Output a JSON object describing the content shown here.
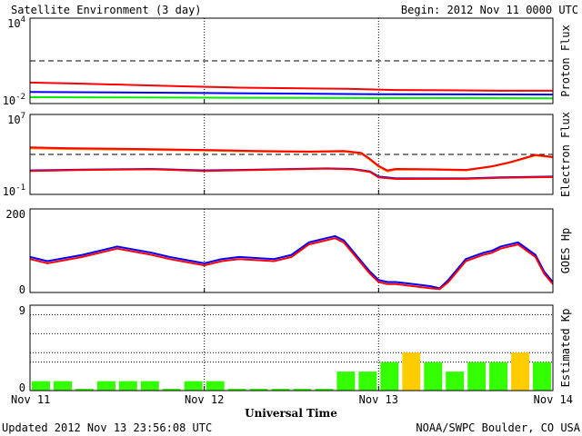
{
  "header": {
    "title": "Satellite Environment (3 day)",
    "begin": "Begin:  2012 Nov 11 0000 UTC"
  },
  "footer": {
    "updated": "Updated 2012 Nov 13 23:56:08 UTC",
    "credit": "NOAA/SWPC Boulder, CO USA"
  },
  "chart_data": [
    {
      "type": "line",
      "ylabel": "Proton Flux",
      "yscale": "log",
      "ylim": [
        0.01,
        10000
      ],
      "yticks": [
        {
          "b": "10",
          "e": "4"
        },
        {
          "b": "10",
          "e": "-2"
        }
      ],
      "threshold": 10,
      "series": [
        {
          "color": "#ff0000",
          "x": [
            0,
            0.3,
            0.6,
            0.9,
            1.2,
            1.5,
            1.8,
            2.1,
            2.4,
            2.7,
            3.0
          ],
          "y": [
            0.3,
            0.25,
            0.2,
            0.16,
            0.13,
            0.12,
            0.11,
            0.09,
            0.085,
            0.08,
            0.08
          ]
        },
        {
          "color": "#0000ff",
          "x": [
            0,
            0.5,
            1.0,
            1.5,
            2.0,
            2.5,
            3.0
          ],
          "y": [
            0.065,
            0.06,
            0.055,
            0.05,
            0.045,
            0.044,
            0.043
          ]
        },
        {
          "color": "#00ee00",
          "x": [
            0,
            0.5,
            1.0,
            1.5,
            2.0,
            2.5,
            3.0
          ],
          "y": [
            0.028,
            0.027,
            0.026,
            0.025,
            0.024,
            0.024,
            0.023
          ]
        }
      ]
    },
    {
      "type": "line",
      "ylabel": "Electron Flux",
      "yscale": "log",
      "ylim": [
        0.1,
        10000000
      ],
      "yticks": [
        {
          "b": "10",
          "e": "7"
        },
        {
          "b": "10",
          "e": "-1"
        }
      ],
      "threshold": 1000,
      "series": [
        {
          "color": "#ff8c00",
          "x": [
            0,
            0.2,
            0.6,
            1.0,
            1.3,
            1.6,
            1.8,
            1.9,
            1.95,
            2.0,
            2.05,
            2.1,
            2.3,
            2.5,
            2.65,
            2.75,
            2.9,
            3.0
          ],
          "y": [
            4000,
            3500,
            3000,
            2400,
            2000,
            1800,
            2000,
            1200,
            300,
            60,
            20,
            30,
            30,
            25,
            60,
            150,
            800,
            500
          ]
        },
        {
          "color": "#ff0000",
          "x": [
            0,
            0.2,
            0.6,
            1.0,
            1.3,
            1.6,
            1.8,
            1.9,
            1.95,
            2.0,
            2.05,
            2.1,
            2.3,
            2.5,
            2.65,
            2.75,
            2.9,
            3.0
          ],
          "y": [
            5000,
            4200,
            3500,
            2800,
            2200,
            1900,
            2200,
            1400,
            350,
            70,
            25,
            35,
            32,
            28,
            65,
            160,
            900,
            550
          ]
        },
        {
          "color": "#0000ff",
          "x": [
            0,
            0.3,
            0.7,
            1.0,
            1.3,
            1.7,
            1.85,
            1.95,
            2.0,
            2.1,
            2.5,
            2.7,
            3.0
          ],
          "y": [
            25,
            30,
            35,
            25,
            30,
            40,
            35,
            20,
            6,
            4,
            4,
            5,
            6
          ]
        },
        {
          "color": "#ff0000",
          "x": [
            0,
            0.3,
            0.7,
            1.0,
            1.3,
            1.7,
            1.85,
            1.95,
            2.0,
            2.1,
            2.5,
            2.7,
            3.0
          ],
          "y": [
            22,
            28,
            32,
            22,
            28,
            38,
            32,
            18,
            5,
            3.5,
            3.6,
            4.5,
            5.5
          ]
        }
      ]
    },
    {
      "type": "line",
      "ylabel": "GOES Hp",
      "yscale": "linear",
      "ylim": [
        0,
        200
      ],
      "yticks": [
        {
          "b": "200",
          "e": ""
        },
        {
          "b": "0",
          "e": ""
        }
      ],
      "series": [
        {
          "color": "#0000ff",
          "x": [
            0,
            0.1,
            0.3,
            0.5,
            0.7,
            0.8,
            1.0,
            1.1,
            1.2,
            1.4,
            1.5,
            1.6,
            1.7,
            1.75,
            1.8,
            1.85,
            1.9,
            1.95,
            2.0,
            2.05,
            2.1,
            2.2,
            2.3,
            2.35,
            2.4,
            2.5,
            2.6,
            2.65,
            2.7,
            2.8,
            2.9,
            2.95,
            3.0
          ],
          "y": [
            85,
            75,
            90,
            110,
            95,
            85,
            70,
            80,
            85,
            80,
            90,
            120,
            130,
            135,
            125,
            100,
            75,
            50,
            30,
            25,
            25,
            20,
            15,
            10,
            30,
            80,
            95,
            100,
            110,
            120,
            90,
            50,
            25
          ]
        },
        {
          "color": "#ff0000",
          "x": [
            0,
            0.1,
            0.3,
            0.5,
            0.7,
            0.8,
            1.0,
            1.1,
            1.2,
            1.4,
            1.5,
            1.6,
            1.7,
            1.75,
            1.8,
            1.85,
            1.9,
            1.95,
            2.0,
            2.05,
            2.1,
            2.2,
            2.3,
            2.35,
            2.4,
            2.5,
            2.6,
            2.65,
            2.7,
            2.8,
            2.9,
            2.95,
            3.0
          ],
          "y": [
            80,
            70,
            85,
            105,
            90,
            80,
            65,
            75,
            80,
            75,
            85,
            115,
            125,
            130,
            120,
            95,
            70,
            45,
            25,
            20,
            20,
            15,
            10,
            8,
            25,
            75,
            90,
            95,
            105,
            115,
            85,
            45,
            20
          ]
        }
      ]
    },
    {
      "type": "bar",
      "ylabel": "Estimated Kp",
      "ylim": [
        0,
        9
      ],
      "yticks": [
        {
          "b": "9",
          "e": ""
        },
        {
          "b": "0",
          "e": ""
        }
      ],
      "bar_width_days": 0.125,
      "values": [
        1,
        1,
        0,
        1,
        1,
        1,
        0,
        1,
        1,
        0,
        0,
        0,
        0,
        0,
        2,
        2,
        3,
        4,
        3,
        2,
        3,
        3,
        4,
        3
      ],
      "colors": {
        "low": "#33ff00",
        "moderate": "#ffcc00"
      }
    }
  ],
  "xaxis": {
    "label": "Universal Time",
    "ticks": [
      "Nov 11",
      "Nov 12",
      "Nov 13",
      "Nov 14"
    ],
    "xlim": [
      0,
      3
    ]
  }
}
